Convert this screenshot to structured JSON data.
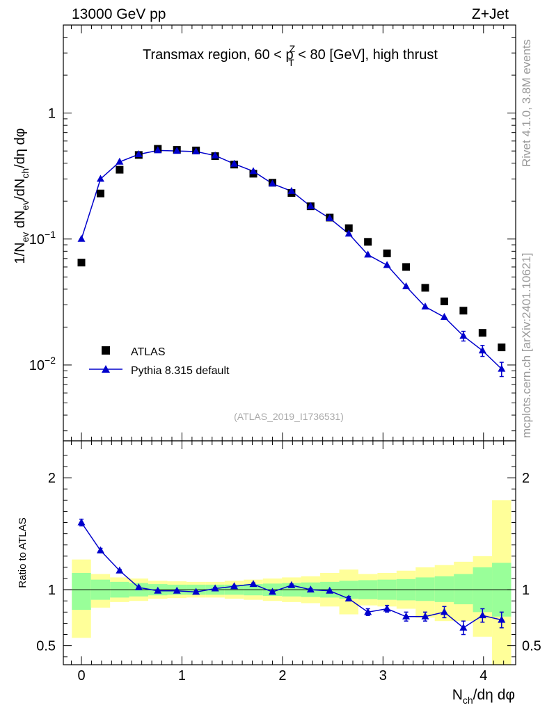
{
  "header": {
    "left": "13000 GeV pp",
    "right": "Z+Jet"
  },
  "side": {
    "rivet": "Rivet 4.1.0,  3.8M events",
    "mcplots": "mcplots.cern.ch [arXiv:2401.10621]"
  },
  "colors": {
    "data": "#000000",
    "mc": "#0000cc",
    "band_inner": "#99ff99",
    "band_outer": "#ffff99"
  },
  "chart_data": [
    {
      "type": "scatter",
      "title": "Transmax region, 60 < p_T^Z < 80 [GeV], high thrust",
      "title_parts": {
        "pre": "Transmax region, 60 < p",
        "sup": "Z",
        "sub": "T",
        "post": " < 80 [GeV], high thrust"
      },
      "ylabel": "1/N_ev dN_ev/dN_ch/dη dφ",
      "ylabel_parts": [
        "1/N",
        "ev",
        " dN",
        "ev",
        "/dN",
        "ch",
        "/dη dφ"
      ],
      "yscale": "log",
      "ylim": [
        0.0025,
        5
      ],
      "xlim": [
        -0.18,
        4.32
      ],
      "yticks": [
        {
          "v": 1,
          "base": "1",
          "exp": ""
        },
        {
          "v": 0.1,
          "base": "10",
          "exp": "−1"
        },
        {
          "v": 0.01,
          "base": "10",
          "exp": "−2"
        }
      ],
      "watermark": "(ATLAS_2019_I1736531)",
      "legend": [
        {
          "label": "ATLAS"
        },
        {
          "label": "Pythia 8.315 default"
        }
      ],
      "series": [
        {
          "name": "ATLAS",
          "marker": "square",
          "x": [
            0,
            0.19,
            0.38,
            0.57,
            0.76,
            0.95,
            1.14,
            1.33,
            1.52,
            1.71,
            1.9,
            2.09,
            2.28,
            2.47,
            2.66,
            2.85,
            3.04,
            3.23,
            3.42,
            3.61,
            3.8,
            3.99,
            4.18
          ],
          "y": [
            0.065,
            0.23,
            0.355,
            0.465,
            0.52,
            0.51,
            0.505,
            0.455,
            0.39,
            0.33,
            0.28,
            0.232,
            0.182,
            0.148,
            0.122,
            0.095,
            0.077,
            0.06,
            0.041,
            0.032,
            0.027,
            0.018,
            0.0138
          ]
        },
        {
          "name": "Pythia 8.315 default",
          "marker": "triangle",
          "x": [
            0,
            0.19,
            0.38,
            0.57,
            0.76,
            0.95,
            1.14,
            1.33,
            1.52,
            1.71,
            1.9,
            2.09,
            2.28,
            2.47,
            2.66,
            2.85,
            3.04,
            3.23,
            3.42,
            3.61,
            3.8,
            3.99,
            4.18
          ],
          "y": [
            0.1,
            0.3,
            0.41,
            0.47,
            0.505,
            0.5,
            0.495,
            0.46,
            0.395,
            0.345,
            0.275,
            0.24,
            0.182,
            0.146,
            0.11,
            0.075,
            0.062,
            0.042,
            0.029,
            0.024,
            0.017,
            0.013,
            0.0093
          ],
          "yerr": [
            0,
            0,
            0,
            0,
            0,
            0,
            0,
            0,
            0,
            0,
            0,
            0,
            0,
            0,
            0,
            0,
            0,
            0,
            0,
            0,
            0.0015,
            0.0013,
            0.0012
          ]
        }
      ]
    },
    {
      "type": "scatter",
      "title": "",
      "xlabel": "N_ch/dη dφ",
      "xlabel_parts": [
        "N",
        "ch",
        "/dη dφ"
      ],
      "ylabel": "Ratio to ATLAS",
      "ylim": [
        0.33,
        2.33
      ],
      "xlim": [
        -0.18,
        4.32
      ],
      "xticks": [
        0,
        1,
        2,
        3,
        4
      ],
      "xtick_labels": [
        "0",
        "1",
        "2",
        "3",
        "4"
      ],
      "yticks": [
        0.5,
        1,
        2
      ],
      "ytick_labels": [
        "0.5",
        "1",
        "2"
      ],
      "bins": [
        0.095,
        0.285,
        0.475,
        0.665,
        0.855,
        1.045,
        1.235,
        1.425,
        1.615,
        1.805,
        1.995,
        2.185,
        2.375,
        2.565,
        2.755,
        2.945,
        3.135,
        3.325,
        3.515,
        3.705,
        3.895,
        4.085,
        4.275
      ],
      "band_inner": [
        [
          0.82,
          1.15
        ],
        [
          0.91,
          1.09
        ],
        [
          0.93,
          1.07
        ],
        [
          0.94,
          1.06
        ],
        [
          0.95,
          1.05
        ],
        [
          0.955,
          1.045
        ],
        [
          0.955,
          1.045
        ],
        [
          0.955,
          1.045
        ],
        [
          0.955,
          1.045
        ],
        [
          0.95,
          1.05
        ],
        [
          0.945,
          1.055
        ],
        [
          0.94,
          1.06
        ],
        [
          0.935,
          1.065
        ],
        [
          0.93,
          1.07
        ],
        [
          0.92,
          1.08
        ],
        [
          0.915,
          1.085
        ],
        [
          0.91,
          1.09
        ],
        [
          0.905,
          1.095
        ],
        [
          0.9,
          1.11
        ],
        [
          0.89,
          1.12
        ],
        [
          0.87,
          1.14
        ],
        [
          0.8,
          1.2
        ],
        [
          0.76,
          1.24
        ]
      ],
      "band_outer": [
        [
          0.57,
          1.27
        ],
        [
          0.84,
          1.14
        ],
        [
          0.89,
          1.11
        ],
        [
          0.9,
          1.1
        ],
        [
          0.92,
          1.08
        ],
        [
          0.925,
          1.075
        ],
        [
          0.93,
          1.07
        ],
        [
          0.93,
          1.07
        ],
        [
          0.92,
          1.08
        ],
        [
          0.91,
          1.09
        ],
        [
          0.9,
          1.1
        ],
        [
          0.89,
          1.11
        ],
        [
          0.88,
          1.12
        ],
        [
          0.85,
          1.15
        ],
        [
          0.78,
          1.18
        ],
        [
          0.86,
          1.14
        ],
        [
          0.85,
          1.15
        ],
        [
          0.83,
          1.17
        ],
        [
          0.75,
          1.2
        ],
        [
          0.72,
          1.22
        ],
        [
          0.72,
          1.25
        ],
        [
          0.58,
          1.3
        ],
        [
          0.2,
          1.8
        ]
      ],
      "series": [
        {
          "name": "Pythia 8.315 default / ATLAS",
          "marker": "triangle",
          "x": [
            0,
            0.19,
            0.38,
            0.57,
            0.76,
            0.95,
            1.14,
            1.33,
            1.52,
            1.71,
            1.9,
            2.09,
            2.28,
            2.47,
            2.66,
            2.85,
            3.04,
            3.23,
            3.42,
            3.61,
            3.8,
            3.99,
            4.18
          ],
          "y": [
            1.6,
            1.35,
            1.17,
            1.02,
            0.99,
            0.99,
            0.98,
            1.01,
            1.03,
            1.05,
            0.98,
            1.04,
            1.0,
            0.99,
            0.92,
            0.8,
            0.83,
            0.76,
            0.76,
            0.8,
            0.66,
            0.77,
            0.73
          ],
          "yerr": [
            0.03,
            0.02,
            0.01,
            0.01,
            0.01,
            0.01,
            0.01,
            0.01,
            0.01,
            0.01,
            0.01,
            0.01,
            0.01,
            0.01,
            0.02,
            0.03,
            0.03,
            0.04,
            0.04,
            0.05,
            0.06,
            0.06,
            0.07
          ]
        }
      ]
    }
  ]
}
